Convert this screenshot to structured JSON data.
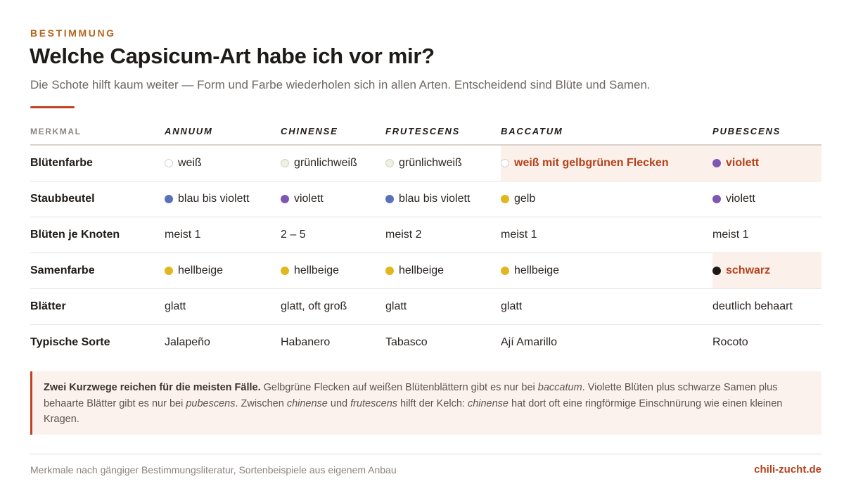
{
  "header": {
    "eyebrow": "BESTIMMUNG",
    "title": "Welche Capsicum-Art habe ich vor mir?",
    "subtitle": "Die Schote hilft kaum weiter — Form und Farbe wiederholen sich in allen Arten. Entscheidend sind Blüte und Samen."
  },
  "colors": {
    "accent": "#c2401c",
    "highlight_bg": "#fcf1ea",
    "highlight_text": "#b5401a"
  },
  "table": {
    "corner_label": "MERKMAL",
    "species": [
      "ANNUUM",
      "CHINENSE",
      "FRUTESCENS",
      "BACCATUM",
      "PUBESCENS"
    ],
    "rows": [
      {
        "label": "Blütenfarbe",
        "cells": [
          {
            "text": "weiß",
            "dot": "#ffffff",
            "dot_border": "#d6d2cd"
          },
          {
            "text": "grünlichweiß",
            "dot": "#eef0e0",
            "dot_border": "#d2d4c2"
          },
          {
            "text": "grünlichweiß",
            "dot": "#eef0e0",
            "dot_border": "#d2d4c2"
          },
          {
            "text": "weiß mit gelbgrünen Flecken",
            "dot": "#ffffff",
            "dot_border": "#d6d2cd",
            "highlight": true
          },
          {
            "text": "violett",
            "dot": "#7e57b3",
            "highlight": true
          }
        ]
      },
      {
        "label": "Staubbeutel",
        "cells": [
          {
            "text": "blau bis violett",
            "dot": "#5a70b8"
          },
          {
            "text": "violett",
            "dot": "#7e57b3"
          },
          {
            "text": "blau bis violett",
            "dot": "#5a70b8"
          },
          {
            "text": "gelb",
            "dot": "#e2b61f"
          },
          {
            "text": "violett",
            "dot": "#7e57b3"
          }
        ]
      },
      {
        "label": "Blüten je Knoten",
        "cells": [
          {
            "text": "meist 1"
          },
          {
            "text": "2 – 5"
          },
          {
            "text": "meist 2"
          },
          {
            "text": "meist 1"
          },
          {
            "text": "meist 1"
          }
        ]
      },
      {
        "label": "Samenfarbe",
        "cells": [
          {
            "text": "hellbeige",
            "dot": "#e2b61f"
          },
          {
            "text": "hellbeige",
            "dot": "#e2b61f"
          },
          {
            "text": "hellbeige",
            "dot": "#e2b61f"
          },
          {
            "text": "hellbeige",
            "dot": "#e2b61f"
          },
          {
            "text": "schwarz",
            "dot": "#1c1917",
            "highlight": true
          }
        ]
      },
      {
        "label": "Blätter",
        "cells": [
          {
            "text": "glatt"
          },
          {
            "text": "glatt, oft groß"
          },
          {
            "text": "glatt"
          },
          {
            "text": "glatt"
          },
          {
            "text": "deutlich behaart"
          }
        ]
      },
      {
        "label": "Typische Sorte",
        "cells": [
          {
            "text": "Jalapeño"
          },
          {
            "text": "Habanero"
          },
          {
            "text": "Tabasco"
          },
          {
            "text": "Ají Amarillo"
          },
          {
            "text": "Rocoto"
          }
        ]
      }
    ]
  },
  "callout": {
    "lead": "Zwei Kurzwege reichen für die meisten Fälle.",
    "segments": [
      {
        "t": " Gelbgrüne Flecken auf weißen Blütenblättern gibt es nur bei ",
        "i": false
      },
      {
        "t": "baccatum",
        "i": true
      },
      {
        "t": ". Violette Blüten plus schwarze Samen plus behaarte Blätter gibt es nur bei ",
        "i": false
      },
      {
        "t": "pubescens",
        "i": true
      },
      {
        "t": ". Zwischen ",
        "i": false
      },
      {
        "t": "chinense",
        "i": true
      },
      {
        "t": " und ",
        "i": false
      },
      {
        "t": "frutescens",
        "i": true
      },
      {
        "t": " hilft der Kelch: ",
        "i": false
      },
      {
        "t": "chinense",
        "i": true
      },
      {
        "t": " hat dort oft eine ringförmige Einschnürung wie einen kleinen Kragen.",
        "i": false
      }
    ]
  },
  "footer": {
    "note": "Merkmale nach gängiger Bestimmungsliteratur, Sortenbeispiele aus eigenem Anbau",
    "brand": "chili-zucht.de"
  }
}
